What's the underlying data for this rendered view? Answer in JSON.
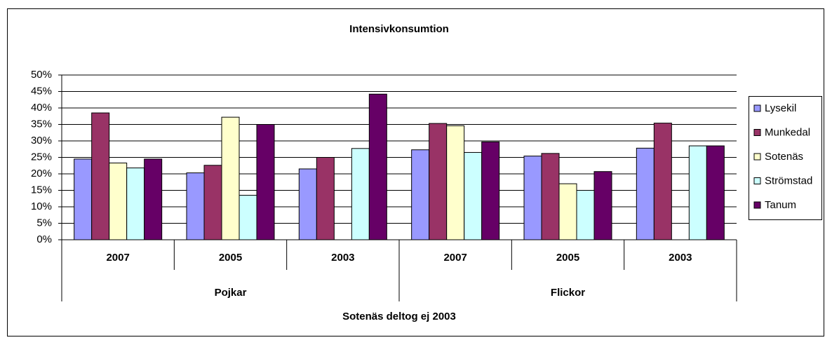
{
  "chart_data": {
    "type": "bar",
    "title": "Intensivkonsumtion",
    "x_label": "Sotenäs deltog ej 2003",
    "groups": [
      {
        "label": "Pojkar",
        "categories": [
          "2007",
          "2005",
          "2003"
        ]
      },
      {
        "label": "Flickor",
        "categories": [
          "2007",
          "2005",
          "2003"
        ]
      }
    ],
    "series": [
      {
        "name": "Lysekil",
        "color": "#9999ff",
        "values": [
          24.5,
          20.3,
          21.5,
          27.3,
          25.4,
          27.8
        ]
      },
      {
        "name": "Munkedal",
        "color": "#993366",
        "values": [
          38.5,
          22.6,
          25,
          35.3,
          26.2,
          35.4
        ]
      },
      {
        "name": "Sotenäs",
        "color": "#ffffcc",
        "values": [
          23.3,
          37.2,
          null,
          34.6,
          17,
          null
        ]
      },
      {
        "name": "Strömstad",
        "color": "#ccffff",
        "values": [
          21.8,
          13.5,
          27.7,
          26.5,
          15,
          28.5
        ]
      },
      {
        "name": "Tanum",
        "color": "#660066",
        "values": [
          24.5,
          35,
          44.2,
          29.7,
          20.7,
          28.5
        ]
      }
    ],
    "ylim": [
      0,
      50
    ],
    "yticks": [
      {
        "value": 0,
        "label": "0%"
      },
      {
        "value": 5,
        "label": "5%"
      },
      {
        "value": 10,
        "label": "10%"
      },
      {
        "value": 15,
        "label": "15%"
      },
      {
        "value": 20,
        "label": "20%"
      },
      {
        "value": 25,
        "label": "25%"
      },
      {
        "value": 30,
        "label": "30%"
      },
      {
        "value": 35,
        "label": "35%"
      },
      {
        "value": 40,
        "label": "40%"
      },
      {
        "value": 45,
        "label": "45%"
      },
      {
        "value": 50,
        "label": "50%"
      }
    ],
    "grid": true,
    "legend": "right"
  }
}
